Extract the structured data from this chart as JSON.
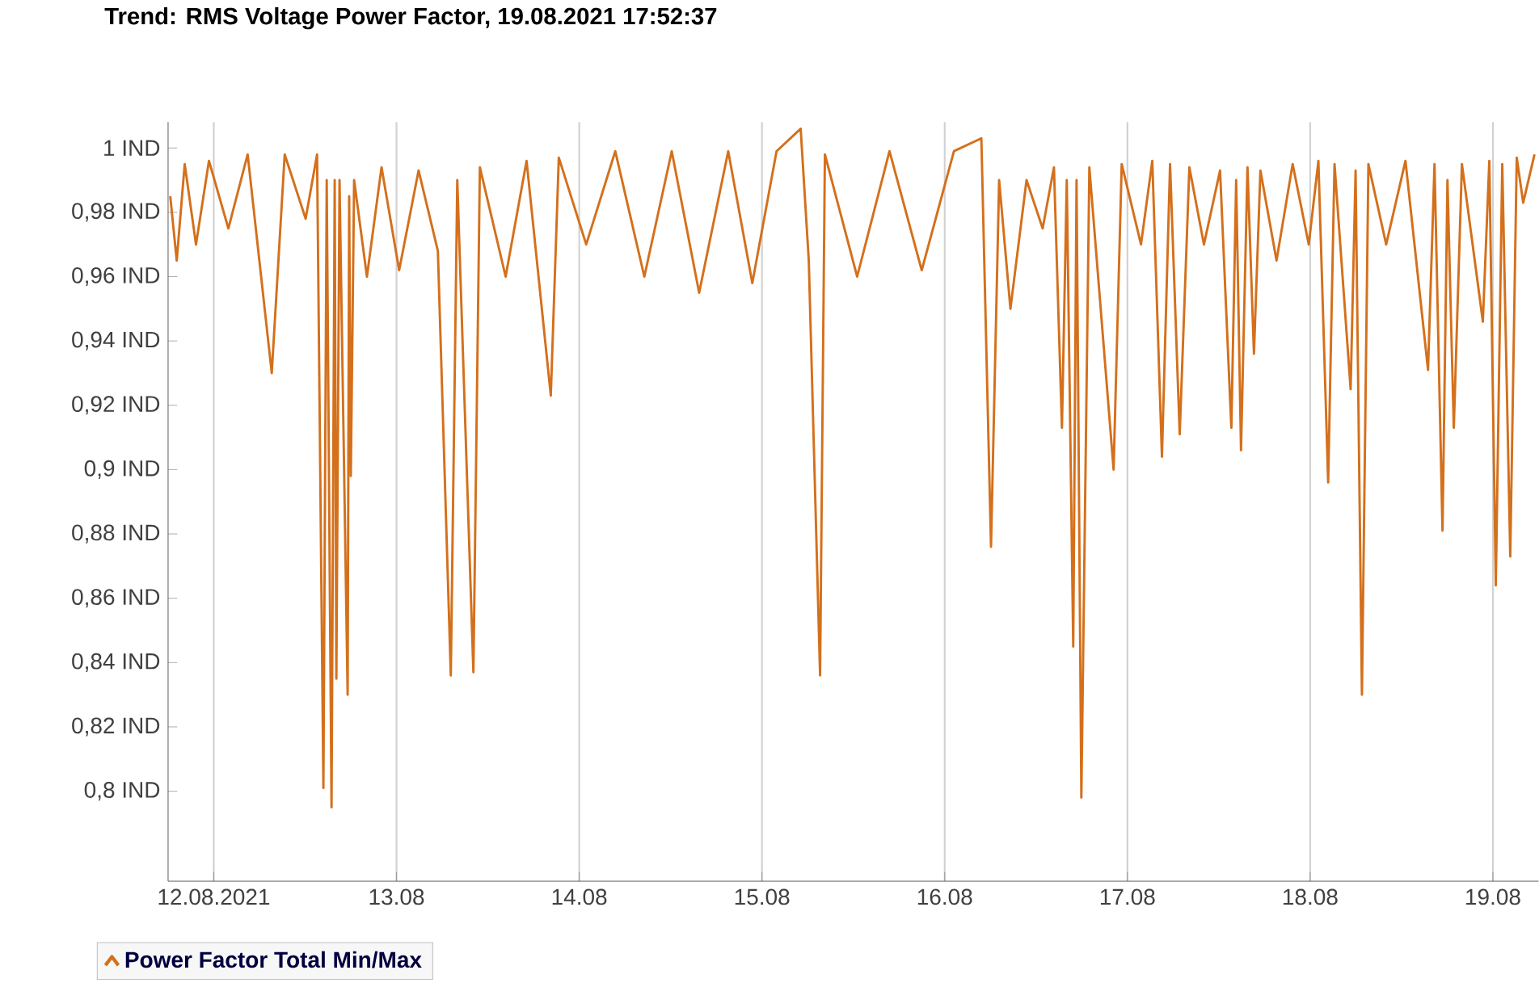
{
  "chart_data": {
    "type": "line",
    "title": "Trend: RMS Voltage  Power Factor, 19.08.2021 17:52:37",
    "xlim": [
      "2021-08-11T18:00",
      "2021-08-19T06:00"
    ],
    "xticks": [
      {
        "value": "2021-08-12",
        "label": "12.08.2021"
      },
      {
        "value": "2021-08-13",
        "label": "13.08"
      },
      {
        "value": "2021-08-14",
        "label": "14.08"
      },
      {
        "value": "2021-08-15",
        "label": "15.08"
      },
      {
        "value": "2021-08-16",
        "label": "16.08"
      },
      {
        "value": "2021-08-17",
        "label": "17.08"
      },
      {
        "value": "2021-08-18",
        "label": "18.08"
      },
      {
        "value": "2021-08-19",
        "label": "19.08"
      }
    ],
    "ylim": [
      0.772,
      1.008
    ],
    "yticks": [
      {
        "value": 0.8,
        "label": "0,8 IND"
      },
      {
        "value": 0.82,
        "label": "0,82 IND"
      },
      {
        "value": 0.84,
        "label": "0,84 IND"
      },
      {
        "value": 0.86,
        "label": "0,86 IND"
      },
      {
        "value": 0.88,
        "label": "0,88 IND"
      },
      {
        "value": 0.9,
        "label": "0,9 IND"
      },
      {
        "value": 0.92,
        "label": "0,92 IND"
      },
      {
        "value": 0.94,
        "label": "0,94 IND"
      },
      {
        "value": 0.96,
        "label": "0,96 IND"
      },
      {
        "value": 0.98,
        "label": "0,98 IND"
      },
      {
        "value": 1,
        "label": "1 IND"
      }
    ],
    "grid": "x",
    "legend": "bottom left",
    "series": [
      {
        "name": "Power Factor Total Min/Max",
        "color": "#d4701c",
        "x": [
          "2021-08-11T18:17",
          "2021-08-11T19:08",
          "2021-08-11T20:11",
          "2021-08-11T21:40",
          "2021-08-11T23:22",
          "2021-08-12T01:55",
          "2021-08-12T04:27",
          "2021-08-12T07:37",
          "2021-08-12T09:19",
          "2021-08-12T12:04",
          "2021-08-12T13:34",
          "2021-08-12T14:24",
          "2021-08-12T14:50",
          "2021-08-12T15:28",
          "2021-08-12T15:53",
          "2021-08-12T16:06",
          "2021-08-12T16:31",
          "2021-08-12T17:35",
          "2021-08-12T17:47",
          "2021-08-12T18:00",
          "2021-08-12T18:26",
          "2021-08-12T20:07",
          "2021-08-12T22:02",
          "2021-08-13T00:21",
          "2021-08-13T02:54",
          "2021-08-13T05:26",
          "2021-08-13T07:08",
          "2021-08-13T07:59",
          "2021-08-13T10:06",
          "2021-08-13T10:57",
          "2021-08-13T14:20",
          "2021-08-13T17:05",
          "2021-08-13T20:16",
          "2021-08-13T21:19",
          "2021-08-14T00:55",
          "2021-08-14T04:44",
          "2021-08-14T08:33",
          "2021-08-14T12:09",
          "2021-08-14T15:45",
          "2021-08-14T19:34",
          "2021-08-14T22:44",
          "2021-08-15T01:55",
          "2021-08-15T05:05",
          "2021-08-15T06:09",
          "2021-08-15T07:38",
          "2021-08-15T08:16",
          "2021-08-15T12:30",
          "2021-08-15T16:45",
          "2021-08-15T20:59",
          "2021-08-16T01:13",
          "2021-08-16T04:49",
          "2021-08-16T06:05",
          "2021-08-16T07:09",
          "2021-08-16T08:38",
          "2021-08-16T10:45",
          "2021-08-16T12:52",
          "2021-08-16T14:21",
          "2021-08-16T15:24",
          "2021-08-16T16:02",
          "2021-08-16T16:53",
          "2021-08-16T17:19",
          "2021-08-16T17:57",
          "2021-08-16T19:00",
          "2021-08-16T22:11",
          "2021-08-16T23:15",
          "2021-08-17T01:47",
          "2021-08-17T03:16",
          "2021-08-17T04:32",
          "2021-08-17T05:36",
          "2021-08-17T06:52",
          "2021-08-17T08:08",
          "2021-08-17T10:03",
          "2021-08-17T12:10",
          "2021-08-17T13:39",
          "2021-08-17T14:17",
          "2021-08-17T14:55",
          "2021-08-17T15:46",
          "2021-08-17T16:37",
          "2021-08-17T17:28",
          "2021-08-17T19:35",
          "2021-08-17T21:42",
          "2021-08-17T23:49",
          "2021-08-18T01:05",
          "2021-08-18T02:22",
          "2021-08-18T03:12",
          "2021-08-18T05:19",
          "2021-08-18T05:58",
          "2021-08-18T06:48",
          "2021-08-18T07:39",
          "2021-08-18T09:59",
          "2021-08-18T12:31",
          "2021-08-18T15:29",
          "2021-08-18T16:20",
          "2021-08-18T17:23",
          "2021-08-18T18:02",
          "2021-08-18T18:52",
          "2021-08-18T19:56",
          "2021-08-18T22:41",
          "2021-08-18T23:32",
          "2021-08-19T00:23",
          "2021-08-19T01:14",
          "2021-08-19T02:17",
          "2021-08-19T03:08",
          "2021-08-19T03:59",
          "2021-08-19T05:28"
        ],
        "values": [
          0.985,
          0.965,
          0.995,
          0.97,
          0.996,
          0.975,
          0.998,
          0.93,
          0.998,
          0.978,
          0.998,
          0.801,
          0.99,
          0.795,
          0.99,
          0.835,
          0.99,
          0.83,
          0.985,
          0.898,
          0.99,
          0.96,
          0.994,
          0.962,
          0.993,
          0.968,
          0.836,
          0.99,
          0.837,
          0.994,
          0.96,
          0.996,
          0.923,
          0.997,
          0.97,
          0.999,
          0.96,
          0.999,
          0.955,
          0.999,
          0.958,
          0.999,
          1.006,
          0.965,
          0.836,
          0.998,
          0.96,
          0.999,
          0.962,
          0.999,
          1.003,
          0.876,
          0.99,
          0.95,
          0.99,
          0.975,
          0.994,
          0.913,
          0.99,
          0.845,
          0.99,
          0.798,
          0.994,
          0.9,
          0.995,
          0.97,
          0.996,
          0.904,
          0.995,
          0.911,
          0.994,
          0.97,
          0.993,
          0.913,
          0.99,
          0.906,
          0.994,
          0.936,
          0.993,
          0.965,
          0.995,
          0.97,
          0.996,
          0.896,
          0.995,
          0.925,
          0.993,
          0.83,
          0.995,
          0.97,
          0.996,
          0.931,
          0.995,
          0.881,
          0.99,
          0.913,
          0.995,
          0.946,
          0.996,
          0.864,
          0.995,
          0.873,
          0.997,
          0.983,
          0.998
        ]
      }
    ]
  }
}
